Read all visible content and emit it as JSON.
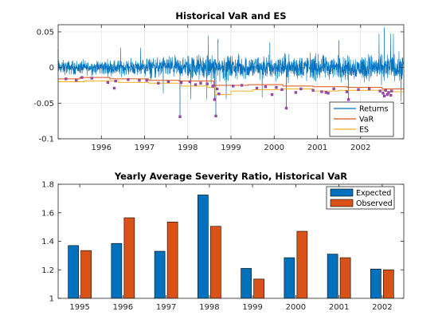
{
  "colors": {
    "returns": "#0072BD",
    "var": "#D95319",
    "es": "#EDB120",
    "marker_edge": "#7E2F8E",
    "expected": "#0072BD",
    "observed": "#D95319",
    "axis": "#262626",
    "grid": "#e1e1e1"
  },
  "chart_data": [
    {
      "type": "line",
      "title": "Historical VaR and ES",
      "xlabel": "",
      "ylabel": "",
      "xlim": [
        1995.0,
        2003.0
      ],
      "ylim": [
        -0.1,
        0.06
      ],
      "xticks": [
        1996,
        1997,
        1998,
        1999,
        2000,
        2001,
        2002
      ],
      "yticks": [
        {
          "v": 0.05,
          "label": "0.05"
        },
        {
          "v": 0,
          "label": "0"
        },
        {
          "v": -0.05,
          "label": "-0.05"
        },
        {
          "v": -0.1,
          "label": "-0.1"
        }
      ],
      "grid": true,
      "legend_position": "bottom-right",
      "series": [
        {
          "name": "Returns",
          "note": "daily returns, roughly |r| < 0.025 with spikes to 0.055 and -0.07",
          "amplitude_by_year": [
            0.009,
            0.01,
            0.013,
            0.016,
            0.015,
            0.016,
            0.015,
            0.017
          ]
        },
        {
          "name": "VaR",
          "steps": [
            [
              1995.0,
              -0.016
            ],
            [
              1995.5,
              -0.014
            ],
            [
              1996.2,
              -0.016
            ],
            [
              1997.1,
              -0.018
            ],
            [
              1997.8,
              -0.019
            ],
            [
              1998.6,
              -0.025
            ],
            [
              1999.4,
              -0.024
            ],
            [
              2000.2,
              -0.026
            ],
            [
              2000.9,
              -0.027
            ],
            [
              2001.7,
              -0.028
            ],
            [
              2002.5,
              -0.03
            ],
            [
              2003.0,
              -0.031
            ]
          ]
        },
        {
          "name": "ES",
          "steps": [
            [
              1995.0,
              -0.02
            ],
            [
              1995.6,
              -0.019
            ],
            [
              1996.4,
              -0.021
            ],
            [
              1997.1,
              -0.022
            ],
            [
              1997.85,
              -0.026
            ],
            [
              1998.45,
              -0.028
            ],
            [
              1998.65,
              -0.038
            ],
            [
              1999.0,
              -0.033
            ],
            [
              1999.5,
              -0.031
            ],
            [
              2000.2,
              -0.03
            ],
            [
              2000.9,
              -0.033
            ],
            [
              2001.5,
              -0.032
            ],
            [
              2002.6,
              -0.034
            ],
            [
              2003.0,
              -0.035
            ]
          ]
        }
      ],
      "exceedances": [
        {
          "x": 1995.18,
          "y": -0.016
        },
        {
          "x": 1995.42,
          "y": -0.018
        },
        {
          "x": 1995.55,
          "y": -0.014
        },
        {
          "x": 1995.78,
          "y": -0.015
        },
        {
          "x": 1996.15,
          "y": -0.021
        },
        {
          "x": 1996.3,
          "y": -0.029
        },
        {
          "x": 1996.33,
          "y": -0.019
        },
        {
          "x": 1996.62,
          "y": -0.017
        },
        {
          "x": 1996.88,
          "y": -0.018
        },
        {
          "x": 1997.05,
          "y": -0.018
        },
        {
          "x": 1997.32,
          "y": -0.022
        },
        {
          "x": 1997.55,
          "y": -0.02
        },
        {
          "x": 1997.82,
          "y": -0.069
        },
        {
          "x": 1997.85,
          "y": -0.021
        },
        {
          "x": 1998.05,
          "y": -0.02
        },
        {
          "x": 1998.18,
          "y": -0.024
        },
        {
          "x": 1998.3,
          "y": -0.022
        },
        {
          "x": 1998.45,
          "y": -0.023
        },
        {
          "x": 1998.58,
          "y": -0.026
        },
        {
          "x": 1998.62,
          "y": -0.045
        },
        {
          "x": 1998.65,
          "y": -0.068
        },
        {
          "x": 1998.68,
          "y": -0.03
        },
        {
          "x": 1998.72,
          "y": -0.037
        },
        {
          "x": 1999.05,
          "y": -0.026
        },
        {
          "x": 1999.25,
          "y": -0.025
        },
        {
          "x": 1999.6,
          "y": -0.029
        },
        {
          "x": 1999.8,
          "y": -0.027
        },
        {
          "x": 1999.95,
          "y": -0.038
        },
        {
          "x": 2000.05,
          "y": -0.028
        },
        {
          "x": 2000.18,
          "y": -0.031
        },
        {
          "x": 2000.28,
          "y": -0.057
        },
        {
          "x": 2000.5,
          "y": -0.035
        },
        {
          "x": 2000.62,
          "y": -0.03
        },
        {
          "x": 2000.9,
          "y": -0.032
        },
        {
          "x": 2001.1,
          "y": -0.034
        },
        {
          "x": 2001.2,
          "y": -0.035
        },
        {
          "x": 2001.25,
          "y": -0.036
        },
        {
          "x": 2001.38,
          "y": -0.03
        },
        {
          "x": 2001.68,
          "y": -0.034
        },
        {
          "x": 2001.72,
          "y": -0.045
        },
        {
          "x": 2001.95,
          "y": -0.031
        },
        {
          "x": 2002.2,
          "y": -0.03
        },
        {
          "x": 2002.45,
          "y": -0.033
        },
        {
          "x": 2002.52,
          "y": -0.036
        },
        {
          "x": 2002.55,
          "y": -0.04
        },
        {
          "x": 2002.58,
          "y": -0.032
        },
        {
          "x": 2002.62,
          "y": -0.038
        },
        {
          "x": 2002.65,
          "y": -0.035
        },
        {
          "x": 2002.7,
          "y": -0.039
        },
        {
          "x": 2002.72,
          "y": -0.033
        }
      ]
    },
    {
      "type": "bar",
      "title": "Yearly Average Severity Ratio, Historical VaR",
      "xlabel": "",
      "ylabel": "",
      "categories": [
        "1995",
        "1996",
        "1997",
        "1998",
        "1999",
        "2000",
        "2001",
        "2002"
      ],
      "ylim": [
        1.0,
        1.8
      ],
      "yticks": [
        {
          "v": 1.0,
          "label": "1"
        },
        {
          "v": 1.2,
          "label": "1.2"
        },
        {
          "v": 1.4,
          "label": "1.4"
        },
        {
          "v": 1.6,
          "label": "1.6"
        },
        {
          "v": 1.8,
          "label": "1.8"
        }
      ],
      "grid": false,
      "legend_position": "top-right",
      "series": [
        {
          "name": "Expected",
          "values": [
            1.37,
            1.385,
            1.33,
            1.725,
            1.21,
            1.285,
            1.31,
            1.205
          ]
        },
        {
          "name": "Observed",
          "values": [
            1.335,
            1.565,
            1.535,
            1.505,
            1.135,
            1.47,
            1.285,
            1.2
          ]
        }
      ]
    }
  ]
}
